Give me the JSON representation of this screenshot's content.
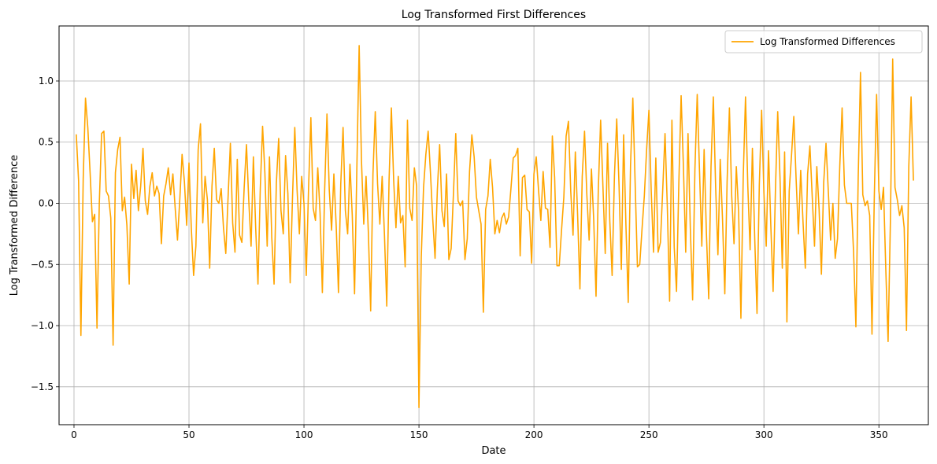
{
  "chart_data": {
    "type": "line",
    "title": "Log Transformed First Differences",
    "xlabel": "Date",
    "ylabel": "Log Transformed Difference",
    "xlim": [
      -6.5,
      371.5
    ],
    "ylim": [
      -1.81,
      1.45
    ],
    "xticks": [
      0,
      50,
      100,
      150,
      200,
      250,
      300,
      350
    ],
    "yticks": [
      -1.5,
      -1.0,
      -0.5,
      0.0,
      0.5,
      1.0
    ],
    "ytick_labels": [
      "−1.5",
      "−1.0",
      "−0.5",
      "0.0",
      "0.5",
      "1.0"
    ],
    "grid": true,
    "legend_position": "top-right",
    "series": [
      {
        "name": "Log Transformed Differences",
        "color": "#ffa500",
        "x_start": 1,
        "values": [
          0.56,
          0.18,
          -1.08,
          0.2,
          0.86,
          0.62,
          0.25,
          -0.15,
          -0.09,
          -1.02,
          0.0,
          0.57,
          0.59,
          0.1,
          0.06,
          -0.12,
          -1.16,
          0.25,
          0.44,
          0.54,
          -0.06,
          0.05,
          -0.18,
          -0.66,
          0.32,
          0.04,
          0.27,
          -0.06,
          0.14,
          0.45,
          0.02,
          -0.09,
          0.14,
          0.25,
          0.06,
          0.14,
          0.08,
          -0.33,
          0.06,
          0.16,
          0.29,
          0.07,
          0.24,
          -0.04,
          -0.3,
          0.03,
          0.4,
          0.18,
          -0.18,
          0.33,
          -0.2,
          -0.59,
          -0.35,
          0.44,
          0.65,
          -0.16,
          0.22,
          0.03,
          -0.53,
          0.14,
          0.45,
          0.03,
          0.0,
          0.12,
          -0.2,
          -0.41,
          0.05,
          0.49,
          -0.16,
          -0.4,
          0.36,
          -0.26,
          -0.32,
          0.13,
          0.48,
          0.02,
          -0.35,
          0.38,
          -0.2,
          -0.66,
          0.12,
          0.63,
          0.25,
          -0.35,
          0.38,
          -0.28,
          -0.66,
          0.17,
          0.53,
          -0.06,
          -0.25,
          0.39,
          0.08,
          -0.65,
          0.04,
          0.62,
          0.11,
          -0.25,
          0.22,
          0.0,
          -0.59,
          0.13,
          0.7,
          -0.04,
          -0.14,
          0.29,
          -0.08,
          -0.73,
          0.11,
          0.73,
          0.11,
          -0.22,
          0.24,
          -0.18,
          -0.73,
          0.16,
          0.62,
          -0.06,
          -0.25,
          0.32,
          -0.1,
          -0.74,
          0.29,
          1.29,
          0.35,
          -0.17,
          0.22,
          -0.24,
          -0.88,
          0.24,
          0.75,
          0.16,
          -0.17,
          0.22,
          -0.26,
          -0.84,
          0.19,
          0.78,
          0.19,
          -0.2,
          0.22,
          -0.16,
          -0.1,
          -0.52,
          0.68,
          -0.04,
          -0.14,
          0.29,
          0.14,
          -1.67,
          -0.44,
          0.13,
          0.4,
          0.59,
          0.25,
          -0.13,
          -0.45,
          0.11,
          0.48,
          -0.06,
          -0.19,
          0.24,
          -0.46,
          -0.37,
          0.08,
          0.57,
          0.02,
          -0.02,
          0.02,
          -0.46,
          -0.29,
          0.26,
          0.56,
          0.38,
          0.05,
          -0.06,
          -0.17,
          -0.89,
          -0.05,
          0.06,
          0.36,
          0.13,
          -0.25,
          -0.14,
          -0.24,
          -0.12,
          -0.08,
          -0.17,
          -0.11,
          0.12,
          0.37,
          0.39,
          0.45,
          -0.43,
          0.21,
          0.23,
          -0.05,
          -0.07,
          -0.49,
          0.24,
          0.38,
          0.11,
          -0.14,
          0.26,
          -0.04,
          -0.05,
          -0.36,
          0.55,
          0.21,
          -0.51,
          -0.51,
          -0.22,
          0.05,
          0.55,
          0.67,
          0.1,
          -0.26,
          0.42,
          -0.1,
          -0.7,
          0.22,
          0.59,
          0.07,
          -0.3,
          0.28,
          -0.14,
          -0.76,
          0.12,
          0.68,
          0.14,
          -0.41,
          0.49,
          -0.15,
          -0.59,
          0.22,
          0.69,
          0.15,
          -0.54,
          0.56,
          -0.18,
          -0.81,
          0.31,
          0.86,
          0.17,
          -0.52,
          -0.5,
          -0.21,
          0.06,
          0.44,
          0.76,
          0.1,
          -0.4,
          0.37,
          -0.4,
          -0.32,
          0.11,
          0.57,
          -0.03,
          -0.8,
          0.68,
          -0.36,
          -0.72,
          0.16,
          0.88,
          0.3,
          -0.4,
          0.57,
          -0.2,
          -0.79,
          0.28,
          0.89,
          0.26,
          -0.35,
          0.44,
          -0.25,
          -0.78,
          0.3,
          0.87,
          0.14,
          -0.42,
          0.36,
          -0.13,
          -0.74,
          0.18,
          0.78,
          0.06,
          -0.33,
          0.3,
          -0.07,
          -0.94,
          0.21,
          0.87,
          0.14,
          -0.38,
          0.45,
          -0.28,
          -0.9,
          0.15,
          0.76,
          0.09,
          -0.35,
          0.43,
          -0.18,
          -0.72,
          0.1,
          0.75,
          0.21,
          -0.53,
          0.42,
          -0.97,
          0.1,
          0.39,
          0.71,
          0.2,
          -0.25,
          0.27,
          -0.15,
          -0.53,
          0.24,
          0.47,
          0.06,
          -0.35,
          0.3,
          -0.05,
          -0.58,
          0.17,
          0.49,
          0.1,
          -0.3,
          0.0,
          -0.45,
          -0.29,
          0.31,
          0.78,
          0.15,
          0.0,
          0.0,
          0.0,
          -0.4,
          -1.01,
          0.21,
          1.07,
          0.07,
          -0.02,
          0.02,
          -0.1,
          -1.07,
          0.05,
          0.89,
          0.1,
          -0.05,
          0.13,
          -0.54,
          -1.13,
          -0.15,
          1.18,
          0.13,
          0.03,
          -0.1,
          -0.02,
          -0.2,
          -1.04,
          0.3,
          0.87,
          0.19
        ]
      }
    ]
  }
}
